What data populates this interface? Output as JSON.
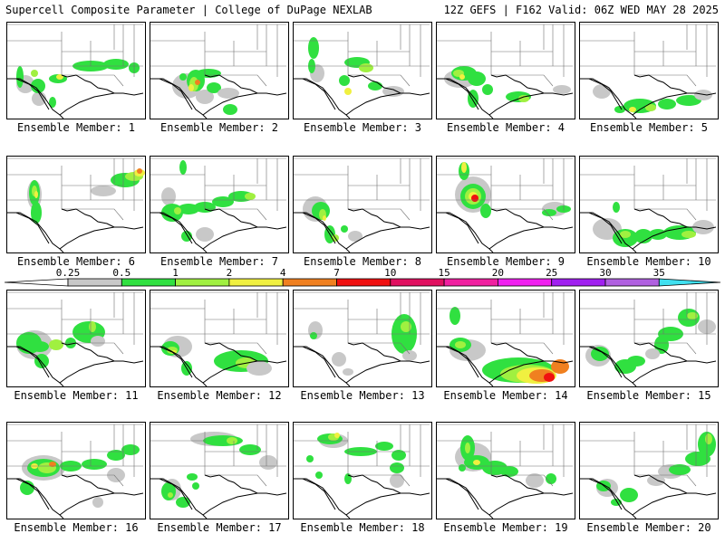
{
  "header": {
    "left_title": "Supercell Composite Parameter | College of DuPage NEXLAB",
    "right_title": "12Z GEFS | F162 Valid: 06Z WED MAY 28 2025"
  },
  "legend": {
    "labels": [
      "0.25",
      "0.5",
      "1",
      "2",
      "4",
      "7",
      "10",
      "15",
      "20",
      "25",
      "30",
      "35"
    ],
    "colors": [
      "#c8c8c8",
      "#30e040",
      "#a0f040",
      "#f0f040",
      "#f08020",
      "#f01010",
      "#e01060",
      "#f020a0",
      "#f020f0",
      "#a020f0",
      "#b060e0",
      "#40e0f0"
    ]
  },
  "map_colors": {
    "gray": "#c8c8c8",
    "green": "#30e040",
    "lightgreen": "#a0f040",
    "yellow": "#f0f040",
    "orange": "#f08020",
    "red": "#f01010"
  },
  "members": [
    {
      "label": "Ensemble Member: 1"
    },
    {
      "label": "Ensemble Member: 2"
    },
    {
      "label": "Ensemble Member: 3"
    },
    {
      "label": "Ensemble Member: 4"
    },
    {
      "label": "Ensemble Member: 5"
    },
    {
      "label": "Ensemble Member: 6"
    },
    {
      "label": "Ensemble Member: 7"
    },
    {
      "label": "Ensemble Member: 8"
    },
    {
      "label": "Ensemble Member: 9"
    },
    {
      "label": "Ensemble Member: 10"
    },
    {
      "label": "Ensemble Member: 11"
    },
    {
      "label": "Ensemble Member: 12"
    },
    {
      "label": "Ensemble Member: 13"
    },
    {
      "label": "Ensemble Member: 14"
    },
    {
      "label": "Ensemble Member: 15"
    },
    {
      "label": "Ensemble Member: 16"
    },
    {
      "label": "Ensemble Member: 17"
    },
    {
      "label": "Ensemble Member: 18"
    },
    {
      "label": "Ensemble Member: 19"
    },
    {
      "label": "Ensemble Member: 20"
    }
  ]
}
